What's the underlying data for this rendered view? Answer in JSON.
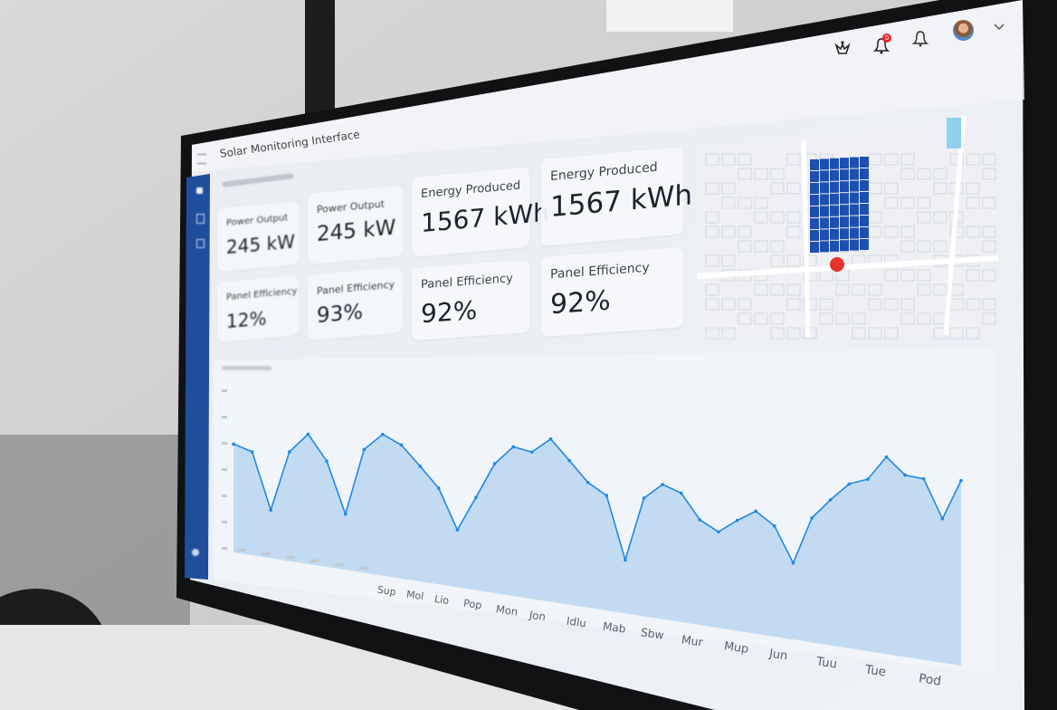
{
  "app": {
    "title": "Solar Monitoring Interface"
  },
  "header": {
    "icons": [
      "trophy-icon",
      "notification-bell-icon",
      "bell-icon",
      "avatar",
      "chevron-down-icon"
    ],
    "notification_badge": "0"
  },
  "sidebar": {
    "icons": [
      "dashboard-icon",
      "panels-icon",
      "reports-icon",
      "settings-icon"
    ],
    "accent": "#1f4e9c"
  },
  "cards": [
    {
      "label": "Power Output",
      "value": "245 kW"
    },
    {
      "label": "Power Output",
      "value": "245 kW"
    },
    {
      "label": "Energy Produced",
      "value": "1567 kWh"
    },
    {
      "label": "Energy Produced",
      "value": "1567 kWh"
    },
    {
      "label": "Panel Efficiency",
      "value": "12%"
    },
    {
      "label": "Panel Efficiency",
      "value": "93%"
    },
    {
      "label": "Panel Efficiency",
      "value": "92%"
    },
    {
      "label": "Panel Efficiency",
      "value": "92%"
    }
  ],
  "map": {
    "panel_color": "#1d4fb0",
    "marker_color": "#e8322b",
    "water_color": "#8fd0f0"
  },
  "chart_data": {
    "type": "area",
    "x_labels": [
      "Sup",
      "Mol",
      "Lio",
      "Pop",
      "Mon",
      "Jon",
      "Idlu",
      "Mab",
      "Sbw",
      "Mur",
      "Mup",
      "Jun",
      "Tuu",
      "Tue",
      "Pod"
    ],
    "values": [
      63,
      59,
      27,
      60,
      70,
      56,
      29,
      63,
      71,
      66,
      56,
      46,
      27,
      43,
      59,
      67,
      65,
      71,
      62,
      53,
      48,
      22,
      48,
      54,
      51,
      41,
      37,
      42,
      46,
      41,
      28,
      45,
      52,
      58,
      60,
      68,
      62,
      61,
      48,
      61
    ],
    "ylim": [
      0,
      100
    ],
    "line_color": "#1e88e5",
    "fill_color": "#bcd8f2",
    "grid": false
  }
}
